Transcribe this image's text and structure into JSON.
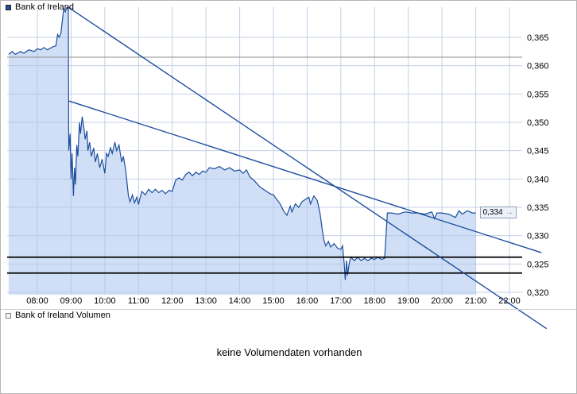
{
  "main_panel": {
    "legend_label": "Bank of Ireland"
  },
  "volume_panel": {
    "legend_label": "Bank of Ireland Volumen",
    "message": "keine Volumendaten vorhanden"
  },
  "price_marker": {
    "label": "0,334",
    "arrow_icon": "→"
  },
  "colors": {
    "line": "#1c4e9d",
    "area": "#aac4ec",
    "grid": "#c6cfe8",
    "trend": "#1c4e9d",
    "reference_line": "#8c8c8c",
    "support_lines": "#000000"
  },
  "chart_data": {
    "type": "area",
    "title": "Bank of Ireland",
    "xlabel": "",
    "ylabel": "",
    "grid": true,
    "legend_position": "top-left",
    "price_axis_side": "right",
    "x_range_hours": [
      7.1,
      23.2
    ],
    "y_range": [
      0.318,
      0.371
    ],
    "x_ticks": [
      {
        "t": 8,
        "label": "08:00"
      },
      {
        "t": 9,
        "label": "09:00"
      },
      {
        "t": 10,
        "label": "10:00"
      },
      {
        "t": 11,
        "label": "11:00"
      },
      {
        "t": 12,
        "label": "12:00"
      },
      {
        "t": 13,
        "label": "13:00"
      },
      {
        "t": 14,
        "label": "14:00"
      },
      {
        "t": 15,
        "label": "15:00"
      },
      {
        "t": 16,
        "label": "16:00"
      },
      {
        "t": 17,
        "label": "17:00"
      },
      {
        "t": 18,
        "label": "18:00"
      },
      {
        "t": 19,
        "label": "19:00"
      },
      {
        "t": 20,
        "label": "20:00"
      },
      {
        "t": 21,
        "label": "21:00"
      },
      {
        "t": 22,
        "label": "22:00"
      }
    ],
    "y_ticks": [
      {
        "p": 0.365,
        "label": "0,365"
      },
      {
        "p": 0.36,
        "label": "0,360"
      },
      {
        "p": 0.355,
        "label": "0,355"
      },
      {
        "p": 0.35,
        "label": "0,350"
      },
      {
        "p": 0.345,
        "label": "0,345"
      },
      {
        "p": 0.34,
        "label": "0,340"
      },
      {
        "p": 0.335,
        "label": "0,335"
      },
      {
        "p": 0.33,
        "label": "0,330"
      },
      {
        "p": 0.325,
        "label": "0,325"
      },
      {
        "p": 0.32,
        "label": "0,320"
      }
    ],
    "reference_line": 0.3615,
    "horizontal_lines": [
      0.3262,
      0.3234
    ],
    "trendlines": [
      {
        "from": [
          8.92,
          0.3703
        ],
        "to": [
          23.1,
          0.3136
        ]
      },
      {
        "from": [
          8.92,
          0.3538
        ],
        "to": [
          22.95,
          0.327
        ]
      }
    ],
    "last_price": 0.334,
    "series": [
      {
        "name": "Bank of Ireland",
        "points": [
          [
            7.15,
            0.362
          ],
          [
            7.25,
            0.3625
          ],
          [
            7.35,
            0.362
          ],
          [
            7.5,
            0.3625
          ],
          [
            7.6,
            0.3622
          ],
          [
            7.75,
            0.3628
          ],
          [
            7.9,
            0.3625
          ],
          [
            8.0,
            0.363
          ],
          [
            8.1,
            0.3628
          ],
          [
            8.2,
            0.3632
          ],
          [
            8.3,
            0.3628
          ],
          [
            8.45,
            0.3633
          ],
          [
            8.55,
            0.3635
          ],
          [
            8.6,
            0.3655
          ],
          [
            8.65,
            0.365
          ],
          [
            8.7,
            0.3658
          ],
          [
            8.78,
            0.37
          ],
          [
            8.83,
            0.3695
          ],
          [
            8.88,
            0.3703
          ],
          [
            8.92,
            0.37
          ],
          [
            8.93,
            0.345
          ],
          [
            8.97,
            0.348
          ],
          [
            9.0,
            0.34
          ],
          [
            9.03,
            0.3445
          ],
          [
            9.07,
            0.337
          ],
          [
            9.1,
            0.342
          ],
          [
            9.13,
            0.339
          ],
          [
            9.17,
            0.346
          ],
          [
            9.2,
            0.344
          ],
          [
            9.25,
            0.35
          ],
          [
            9.28,
            0.348
          ],
          [
            9.33,
            0.351
          ],
          [
            9.38,
            0.349
          ],
          [
            9.42,
            0.347
          ],
          [
            9.47,
            0.3485
          ],
          [
            9.5,
            0.345
          ],
          [
            9.55,
            0.3465
          ],
          [
            9.6,
            0.344
          ],
          [
            9.67,
            0.3455
          ],
          [
            9.72,
            0.343
          ],
          [
            9.78,
            0.3445
          ],
          [
            9.85,
            0.342
          ],
          [
            9.92,
            0.3435
          ],
          [
            10.0,
            0.341
          ],
          [
            10.05,
            0.3445
          ],
          [
            10.1,
            0.344
          ],
          [
            10.17,
            0.3455
          ],
          [
            10.22,
            0.3445
          ],
          [
            10.3,
            0.3465
          ],
          [
            10.35,
            0.345
          ],
          [
            10.42,
            0.346
          ],
          [
            10.5,
            0.343
          ],
          [
            10.55,
            0.344
          ],
          [
            10.62,
            0.3415
          ],
          [
            10.7,
            0.337
          ],
          [
            10.75,
            0.336
          ],
          [
            10.82,
            0.3372
          ],
          [
            10.88,
            0.3358
          ],
          [
            10.95,
            0.3368
          ],
          [
            11.0,
            0.3355
          ],
          [
            11.05,
            0.3368
          ],
          [
            11.1,
            0.3378
          ],
          [
            11.2,
            0.3372
          ],
          [
            11.3,
            0.3382
          ],
          [
            11.4,
            0.3376
          ],
          [
            11.5,
            0.3382
          ],
          [
            11.6,
            0.3376
          ],
          [
            11.7,
            0.338
          ],
          [
            11.8,
            0.3374
          ],
          [
            11.9,
            0.338
          ],
          [
            12.0,
            0.3378
          ],
          [
            12.1,
            0.3398
          ],
          [
            12.2,
            0.3402
          ],
          [
            12.3,
            0.3398
          ],
          [
            12.4,
            0.3408
          ],
          [
            12.5,
            0.3412
          ],
          [
            12.6,
            0.3406
          ],
          [
            12.7,
            0.3412
          ],
          [
            12.8,
            0.3408
          ],
          [
            12.9,
            0.3414
          ],
          [
            13.0,
            0.3412
          ],
          [
            13.1,
            0.342
          ],
          [
            13.25,
            0.3418
          ],
          [
            13.4,
            0.3422
          ],
          [
            13.55,
            0.3416
          ],
          [
            13.7,
            0.342
          ],
          [
            13.85,
            0.3414
          ],
          [
            14.0,
            0.3416
          ],
          [
            14.1,
            0.341
          ],
          [
            14.2,
            0.3416
          ],
          [
            14.3,
            0.3404
          ],
          [
            14.45,
            0.3396
          ],
          [
            14.6,
            0.3386
          ],
          [
            14.75,
            0.338
          ],
          [
            14.9,
            0.3374
          ],
          [
            15.0,
            0.3372
          ],
          [
            15.1,
            0.3364
          ],
          [
            15.2,
            0.3356
          ],
          [
            15.3,
            0.3344
          ],
          [
            15.4,
            0.3336
          ],
          [
            15.5,
            0.3352
          ],
          [
            15.55,
            0.3342
          ],
          [
            15.65,
            0.3356
          ],
          [
            15.75,
            0.335
          ],
          [
            15.85,
            0.336
          ],
          [
            15.95,
            0.3364
          ],
          [
            16.05,
            0.3368
          ],
          [
            16.1,
            0.3356
          ],
          [
            16.2,
            0.337
          ],
          [
            16.3,
            0.3362
          ],
          [
            16.38,
            0.334
          ],
          [
            16.45,
            0.331
          ],
          [
            16.5,
            0.3292
          ],
          [
            16.55,
            0.3282
          ],
          [
            16.63,
            0.329
          ],
          [
            16.7,
            0.328
          ],
          [
            16.8,
            0.3286
          ],
          [
            16.9,
            0.3278
          ],
          [
            17.0,
            0.3276
          ],
          [
            17.05,
            0.3282
          ],
          [
            17.1,
            0.325
          ],
          [
            17.13,
            0.3222
          ],
          [
            17.17,
            0.3256
          ],
          [
            17.2,
            0.323
          ],
          [
            17.25,
            0.3252
          ],
          [
            17.3,
            0.3262
          ],
          [
            17.4,
            0.3256
          ],
          [
            17.5,
            0.3262
          ],
          [
            17.6,
            0.3256
          ],
          [
            17.7,
            0.326
          ],
          [
            17.8,
            0.3256
          ],
          [
            17.9,
            0.326
          ],
          [
            18.0,
            0.3258
          ],
          [
            18.1,
            0.3262
          ],
          [
            18.2,
            0.3258
          ],
          [
            18.3,
            0.326
          ],
          [
            18.38,
            0.334
          ],
          [
            18.5,
            0.334
          ],
          [
            18.7,
            0.3338
          ],
          [
            18.9,
            0.3342
          ],
          [
            19.1,
            0.334
          ],
          [
            19.3,
            0.334
          ],
          [
            19.5,
            0.3338
          ],
          [
            19.7,
            0.3342
          ],
          [
            19.78,
            0.333
          ],
          [
            19.85,
            0.334
          ],
          [
            20.0,
            0.334
          ],
          [
            20.2,
            0.3338
          ],
          [
            20.4,
            0.3332
          ],
          [
            20.5,
            0.3344
          ],
          [
            20.6,
            0.3338
          ],
          [
            20.75,
            0.3344
          ],
          [
            20.9,
            0.334
          ],
          [
            21.0,
            0.334
          ]
        ]
      }
    ]
  }
}
